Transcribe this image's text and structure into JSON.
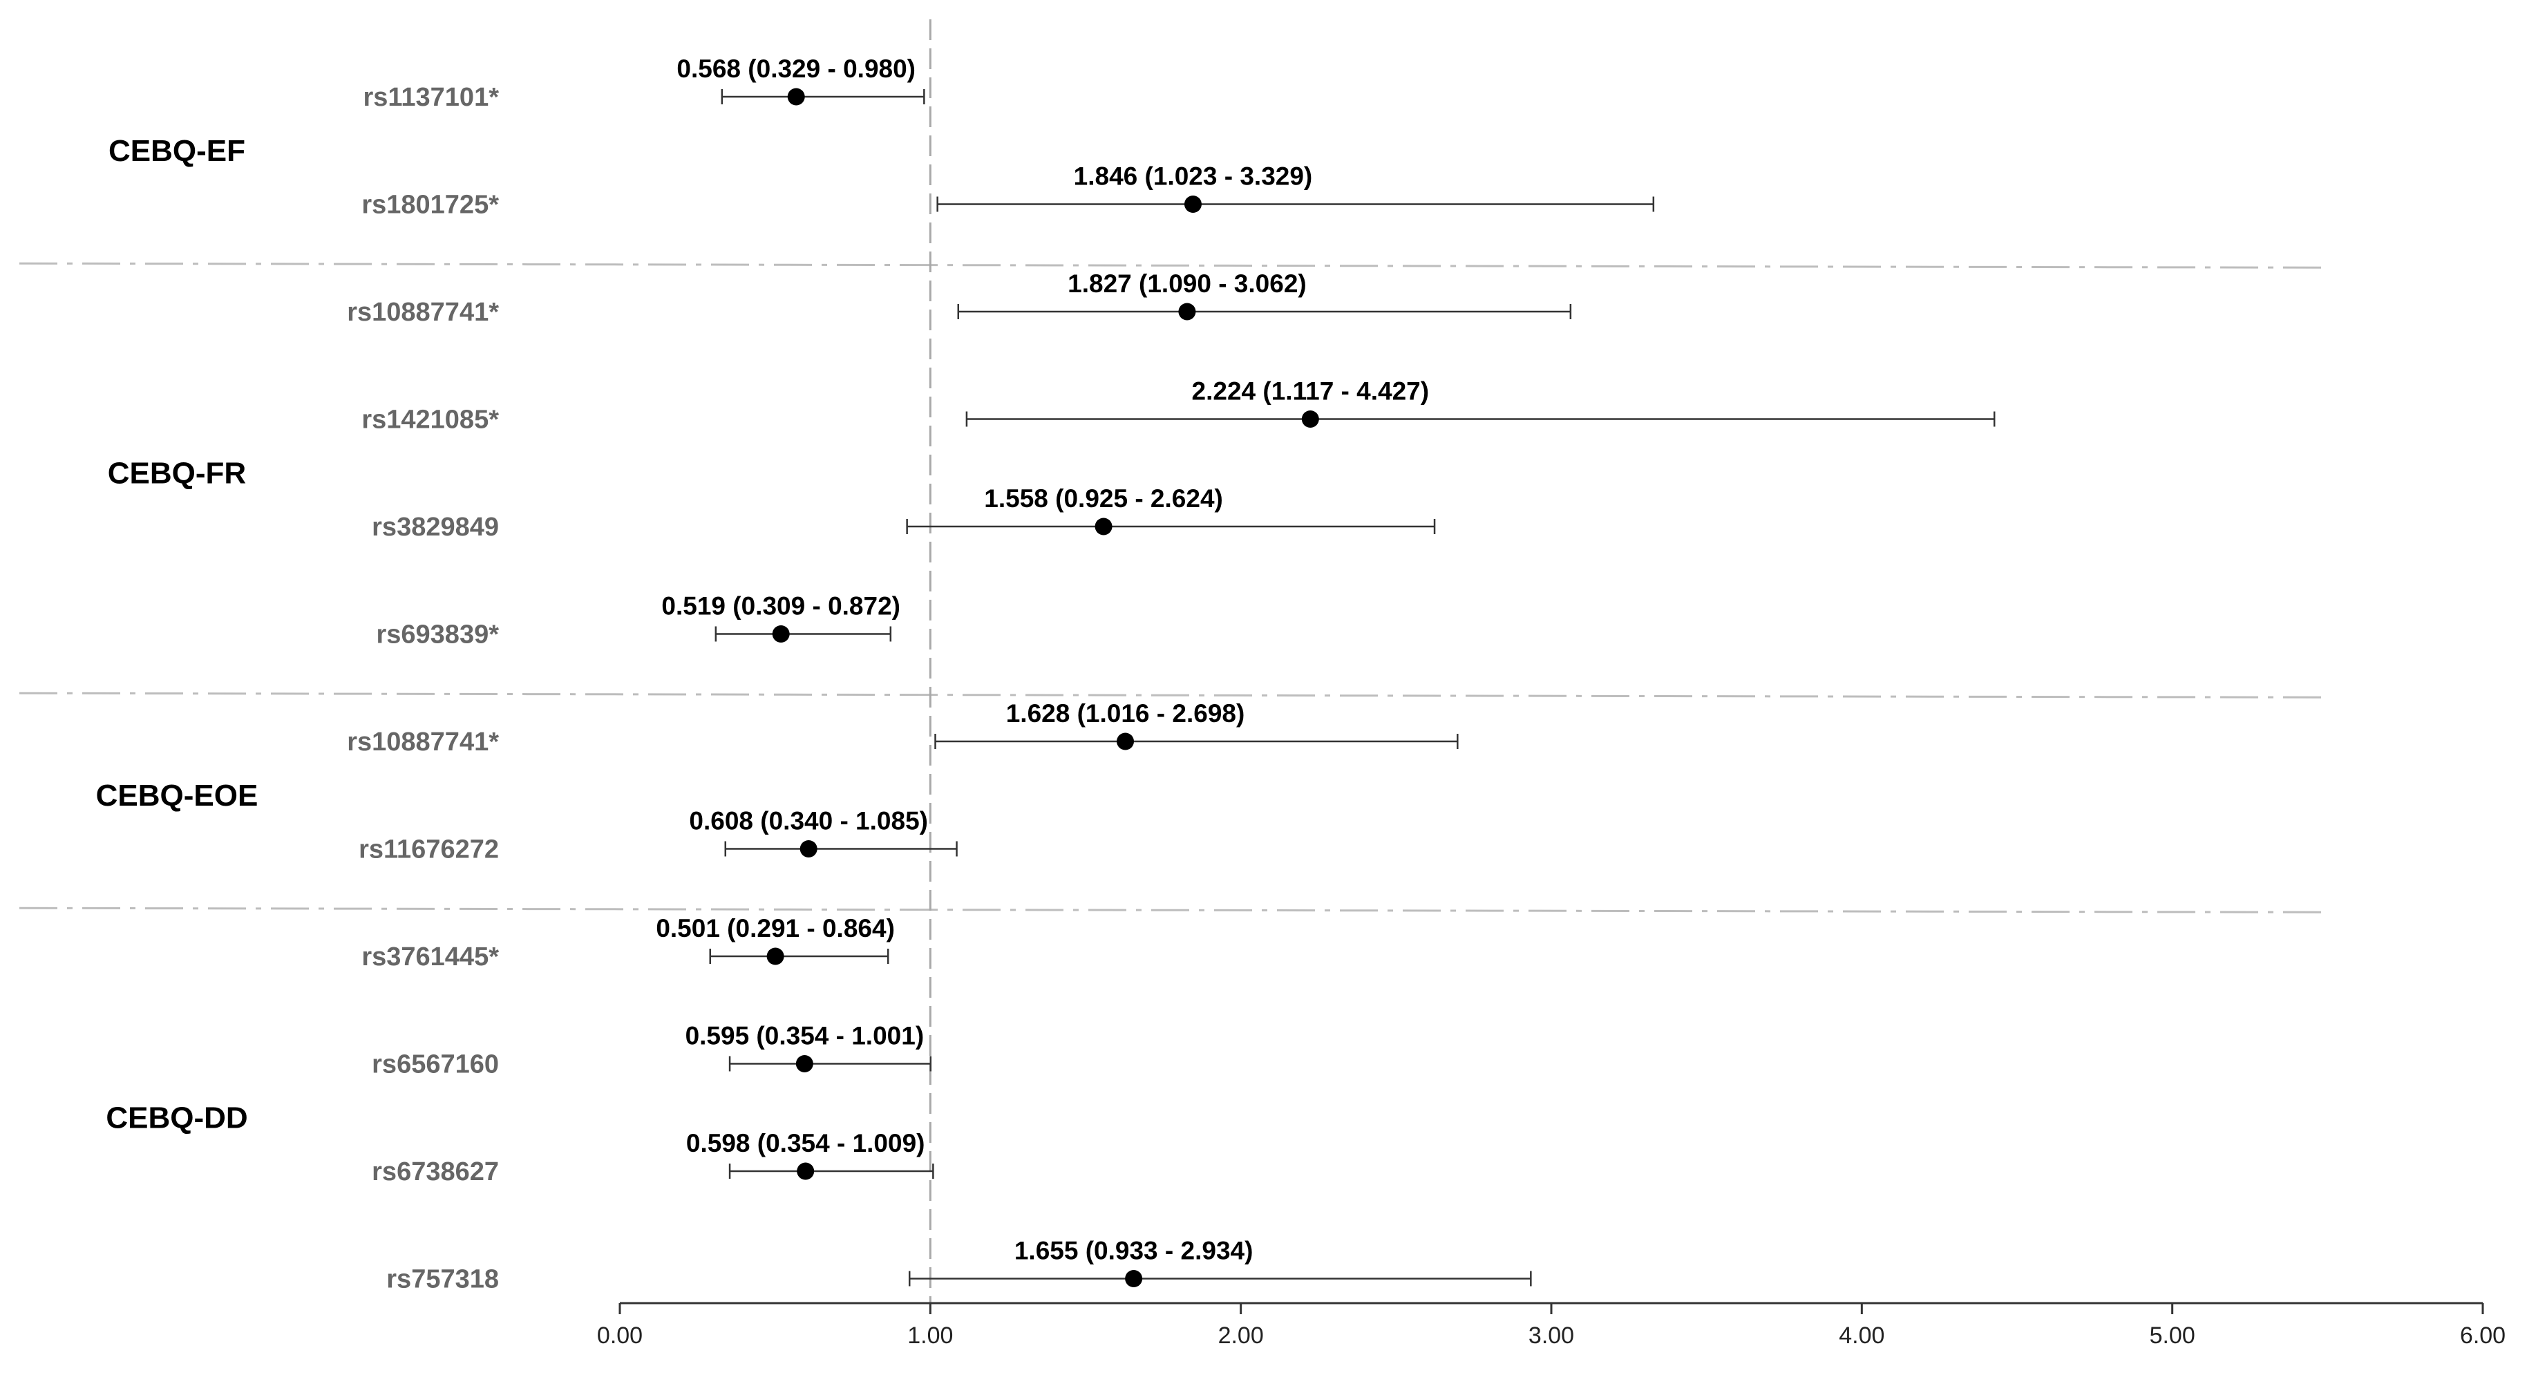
{
  "chart_data": {
    "type": "forest",
    "reference_value": 1.0,
    "xlim": [
      0,
      6
    ],
    "x_ticks": [
      "0.00",
      "1.00",
      "2.00",
      "3.00",
      "4.00",
      "5.00",
      "6.00"
    ],
    "groups": [
      {
        "name": "CEBQ-EF",
        "rows": [
          {
            "snp": "rs1137101*",
            "or": 0.568,
            "lo": 0.329,
            "hi": 0.98,
            "label": "0.568 (0.329 - 0.980)"
          },
          {
            "snp": "rs1801725*",
            "or": 1.846,
            "lo": 1.023,
            "hi": 3.329,
            "label": "1.846 (1.023 - 3.329)"
          }
        ]
      },
      {
        "name": "CEBQ-FR",
        "rows": [
          {
            "snp": "rs10887741*",
            "or": 1.827,
            "lo": 1.09,
            "hi": 3.062,
            "label": "1.827 (1.090 - 3.062)"
          },
          {
            "snp": "rs1421085*",
            "or": 2.224,
            "lo": 1.117,
            "hi": 4.427,
            "label": "2.224 (1.117 - 4.427)"
          },
          {
            "snp": "rs3829849",
            "or": 1.558,
            "lo": 0.925,
            "hi": 2.624,
            "label": "1.558 (0.925 - 2.624)"
          },
          {
            "snp": "rs693839*",
            "or": 0.519,
            "lo": 0.309,
            "hi": 0.872,
            "label": "0.519 (0.309 - 0.872)"
          }
        ]
      },
      {
        "name": "CEBQ-EOE",
        "rows": [
          {
            "snp": "rs10887741*",
            "or": 1.628,
            "lo": 1.016,
            "hi": 2.698,
            "label": "1.628 (1.016 - 2.698)"
          },
          {
            "snp": "rs11676272",
            "or": 0.608,
            "lo": 0.34,
            "hi": 1.085,
            "label": "0.608 (0.340 - 1.085)"
          }
        ]
      },
      {
        "name": "CEBQ-DD",
        "rows": [
          {
            "snp": "rs3761445*",
            "or": 0.501,
            "lo": 0.291,
            "hi": 0.864,
            "label": "0.501 (0.291 - 0.864)"
          },
          {
            "snp": "rs6567160",
            "or": 0.595,
            "lo": 0.354,
            "hi": 1.001,
            "label": "0.595 (0.354 - 1.001)"
          },
          {
            "snp": "rs6738627",
            "or": 0.598,
            "lo": 0.354,
            "hi": 1.009,
            "label": "0.598 (0.354 - 1.009)"
          },
          {
            "snp": "rs757318",
            "or": 1.655,
            "lo": 0.933,
            "hi": 2.934,
            "label": "1.655 (0.933 - 2.934)"
          }
        ]
      }
    ]
  }
}
